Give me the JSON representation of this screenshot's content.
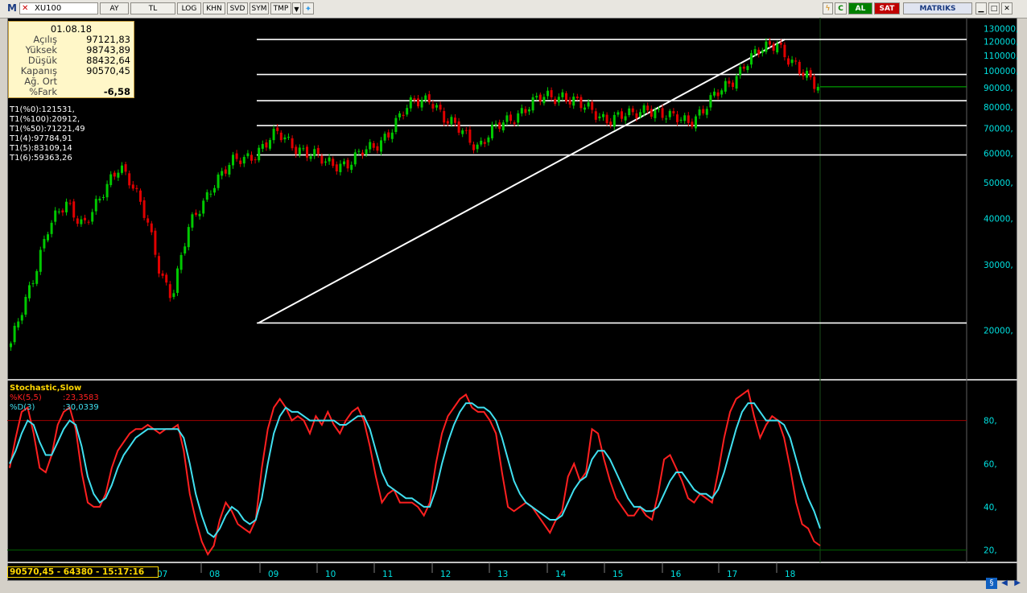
{
  "toolbar": {
    "symbol": "XU100",
    "buttons": [
      "AY",
      "TL",
      "LOG",
      "KHN",
      "SVD",
      "SYM",
      "TMP"
    ],
    "al_label": "AL",
    "sat_label": "SAT",
    "brand": "MATRIKS"
  },
  "info": {
    "date": "01.08.18",
    "rows": [
      {
        "label": "Açılış",
        "value": "97121,83"
      },
      {
        "label": "Yüksek",
        "value": "98743,89"
      },
      {
        "label": "Düşük",
        "value": "88432,64"
      },
      {
        "label": "Kapanış",
        "value": "90570,45"
      },
      {
        "label": "Ağ. Ort",
        "value": ""
      },
      {
        "label": "%Fark",
        "value": "-6,58"
      }
    ]
  },
  "fib_levels_text": [
    "T1(%0):121531,",
    "T1(%100):20912,",
    "T1(%50):71221,49",
    "T1(4):97784,91",
    "T1(5):83109,14",
    "T1(6):59363,26"
  ],
  "stochastic": {
    "title": "Stochastic,Slow",
    "k_label": "%K(5,5)",
    "k_value": ":23,3583",
    "d_label": "%D(3)",
    "d_value": ":30,0339"
  },
  "status_text": "90570,45 - 64380 - 15:17:16",
  "colors": {
    "up": "#00c800",
    "down": "#e00000",
    "fib": "#ffffff",
    "axis_text": "#00e0e0",
    "k_line": "#ff2020",
    "d_line": "#40e0f0",
    "info_bg": "#fff7c8",
    "status": "#ffd700"
  },
  "chart_data": [
    {
      "type": "candlestick",
      "scale": "log",
      "ylim": [
        15000,
        135000
      ],
      "y_ticks": [
        "130000,",
        "120000,",
        "110000,",
        "100000,",
        "90000,",
        "80000,",
        "70000,",
        "60000,",
        "50000,",
        "40000,",
        "30000,",
        "20000,"
      ],
      "y_tick_values": [
        130000,
        120000,
        110000,
        100000,
        90000,
        80000,
        70000,
        60000,
        50000,
        40000,
        30000,
        20000
      ],
      "x_ticks": [
        "07",
        "08",
        "09",
        "10",
        "11",
        "12",
        "13",
        "14",
        "15",
        "16",
        "17",
        "18"
      ],
      "fib_levels": [
        121531,
        97784.91,
        83109.14,
        71221.49,
        59363.26,
        20912
      ],
      "trendline": {
        "from": [
          20912,
          "09"
        ],
        "to": [
          121531,
          "18"
        ]
      },
      "last_close": 90570.45,
      "close_anchors": [
        [
          0,
          18000
        ],
        [
          0.2,
          25000
        ],
        [
          0.45,
          37000
        ],
        [
          0.7,
          44000
        ],
        [
          0.9,
          39000
        ],
        [
          1.1,
          44000
        ],
        [
          1.35,
          57000
        ],
        [
          1.5,
          50000
        ],
        [
          1.7,
          38000
        ],
        [
          1.85,
          29000
        ],
        [
          2.0,
          25000
        ],
        [
          2.2,
          37000
        ],
        [
          2.5,
          50000
        ],
        [
          2.75,
          56000
        ],
        [
          3.0,
          60000
        ],
        [
          3.3,
          67000
        ],
        [
          3.6,
          62000
        ],
        [
          3.9,
          56000
        ],
        [
          4.2,
          57000
        ],
        [
          4.5,
          62000
        ],
        [
          4.75,
          72000
        ],
        [
          5.0,
          82000
        ],
        [
          5.2,
          86000
        ],
        [
          5.4,
          72000
        ],
        [
          5.6,
          69000
        ],
        [
          5.8,
          63000
        ],
        [
          6.0,
          69000
        ],
        [
          6.3,
          78000
        ],
        [
          6.6,
          84000
        ],
        [
          6.85,
          87000
        ],
        [
          7.1,
          79000
        ],
        [
          7.4,
          75000
        ],
        [
          7.7,
          75000
        ],
        [
          7.9,
          81000
        ],
        [
          8.15,
          74000
        ],
        [
          8.4,
          74000
        ],
        [
          8.6,
          79000
        ],
        [
          8.85,
          90000
        ],
        [
          9.1,
          105000
        ],
        [
          9.35,
          114000
        ],
        [
          9.5,
          121000
        ],
        [
          9.6,
          112000
        ],
        [
          9.8,
          97000
        ],
        [
          9.95,
          93000
        ],
        [
          10.05,
          90570
        ]
      ]
    },
    {
      "type": "line",
      "title": "Stochastic,Slow",
      "ylim": [
        15,
        97
      ],
      "y_ticks": [
        "80,",
        "60,",
        "40,",
        "20,"
      ],
      "y_tick_values": [
        80,
        60,
        40,
        20
      ],
      "reference_lines": [
        80,
        20
      ],
      "series": [
        {
          "name": "%K(5,5)",
          "last": 23.3583,
          "values": [
            58,
            72,
            84,
            86,
            74,
            58,
            56,
            64,
            78,
            84,
            86,
            76,
            56,
            42,
            40,
            40,
            46,
            58,
            66,
            70,
            74,
            76,
            76,
            78,
            76,
            74,
            76,
            76,
            78,
            66,
            46,
            34,
            24,
            18,
            22,
            34,
            42,
            38,
            32,
            30,
            28,
            34,
            58,
            76,
            86,
            90,
            86,
            80,
            82,
            80,
            74,
            82,
            78,
            84,
            78,
            74,
            80,
            84,
            86,
            80,
            68,
            54,
            42,
            46,
            48,
            42,
            42,
            42,
            40,
            36,
            42,
            60,
            74,
            82,
            86,
            90,
            92,
            86,
            84,
            84,
            80,
            74,
            56,
            40,
            38,
            40,
            42,
            40,
            36,
            32,
            28,
            34,
            38,
            54,
            60,
            52,
            56,
            76,
            74,
            62,
            52,
            44,
            40,
            36,
            36,
            40,
            36,
            34,
            46,
            62,
            64,
            58,
            52,
            44,
            42,
            46,
            44,
            42,
            56,
            72,
            84,
            90,
            92,
            94,
            82,
            72,
            78,
            82,
            80,
            72,
            58,
            42,
            32,
            30,
            24,
            22
          ]
        },
        {
          "name": "%D(3)",
          "last": 30.0339,
          "values": [
            60,
            66,
            74,
            80,
            78,
            70,
            64,
            64,
            70,
            76,
            80,
            78,
            68,
            54,
            46,
            42,
            44,
            50,
            58,
            64,
            68,
            72,
            74,
            76,
            76,
            76,
            76,
            76,
            76,
            72,
            60,
            46,
            36,
            28,
            26,
            30,
            36,
            40,
            38,
            34,
            32,
            34,
            44,
            60,
            74,
            82,
            86,
            84,
            84,
            82,
            80,
            80,
            80,
            80,
            80,
            78,
            78,
            80,
            82,
            82,
            76,
            66,
            56,
            50,
            48,
            46,
            44,
            44,
            42,
            40,
            40,
            48,
            60,
            70,
            78,
            84,
            88,
            88,
            86,
            86,
            84,
            80,
            72,
            62,
            52,
            46,
            42,
            40,
            38,
            36,
            34,
            34,
            36,
            42,
            48,
            52,
            54,
            62,
            66,
            66,
            62,
            56,
            50,
            44,
            40,
            40,
            38,
            38,
            40,
            46,
            52,
            56,
            56,
            52,
            48,
            46,
            46,
            44,
            48,
            56,
            66,
            76,
            84,
            88,
            88,
            84,
            80,
            80,
            80,
            78,
            72,
            62,
            52,
            44,
            38,
            30
          ]
        }
      ]
    }
  ]
}
